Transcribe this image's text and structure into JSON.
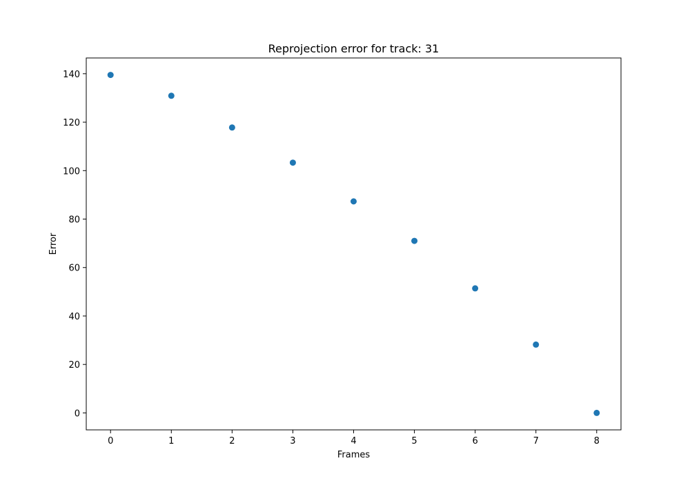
{
  "chart_data": {
    "type": "scatter",
    "title": "Reprojection error for track: 31",
    "xlabel": "Frames",
    "ylabel": "Error",
    "xlim": [
      -0.4,
      8.4
    ],
    "ylim": [
      -7,
      146.5
    ],
    "xticks": [
      0,
      1,
      2,
      3,
      4,
      5,
      6,
      7,
      8
    ],
    "yticks": [
      0,
      20,
      40,
      60,
      80,
      100,
      120,
      140
    ],
    "grid": false,
    "marker_color": "#1f77b4",
    "points": [
      {
        "x": 0,
        "y": 139.5
      },
      {
        "x": 1,
        "y": 130.9
      },
      {
        "x": 2,
        "y": 117.8
      },
      {
        "x": 3,
        "y": 103.3
      },
      {
        "x": 4,
        "y": 87.3
      },
      {
        "x": 5,
        "y": 71.0
      },
      {
        "x": 6,
        "y": 51.4
      },
      {
        "x": 7,
        "y": 28.2
      },
      {
        "x": 8,
        "y": 0.0
      }
    ]
  }
}
